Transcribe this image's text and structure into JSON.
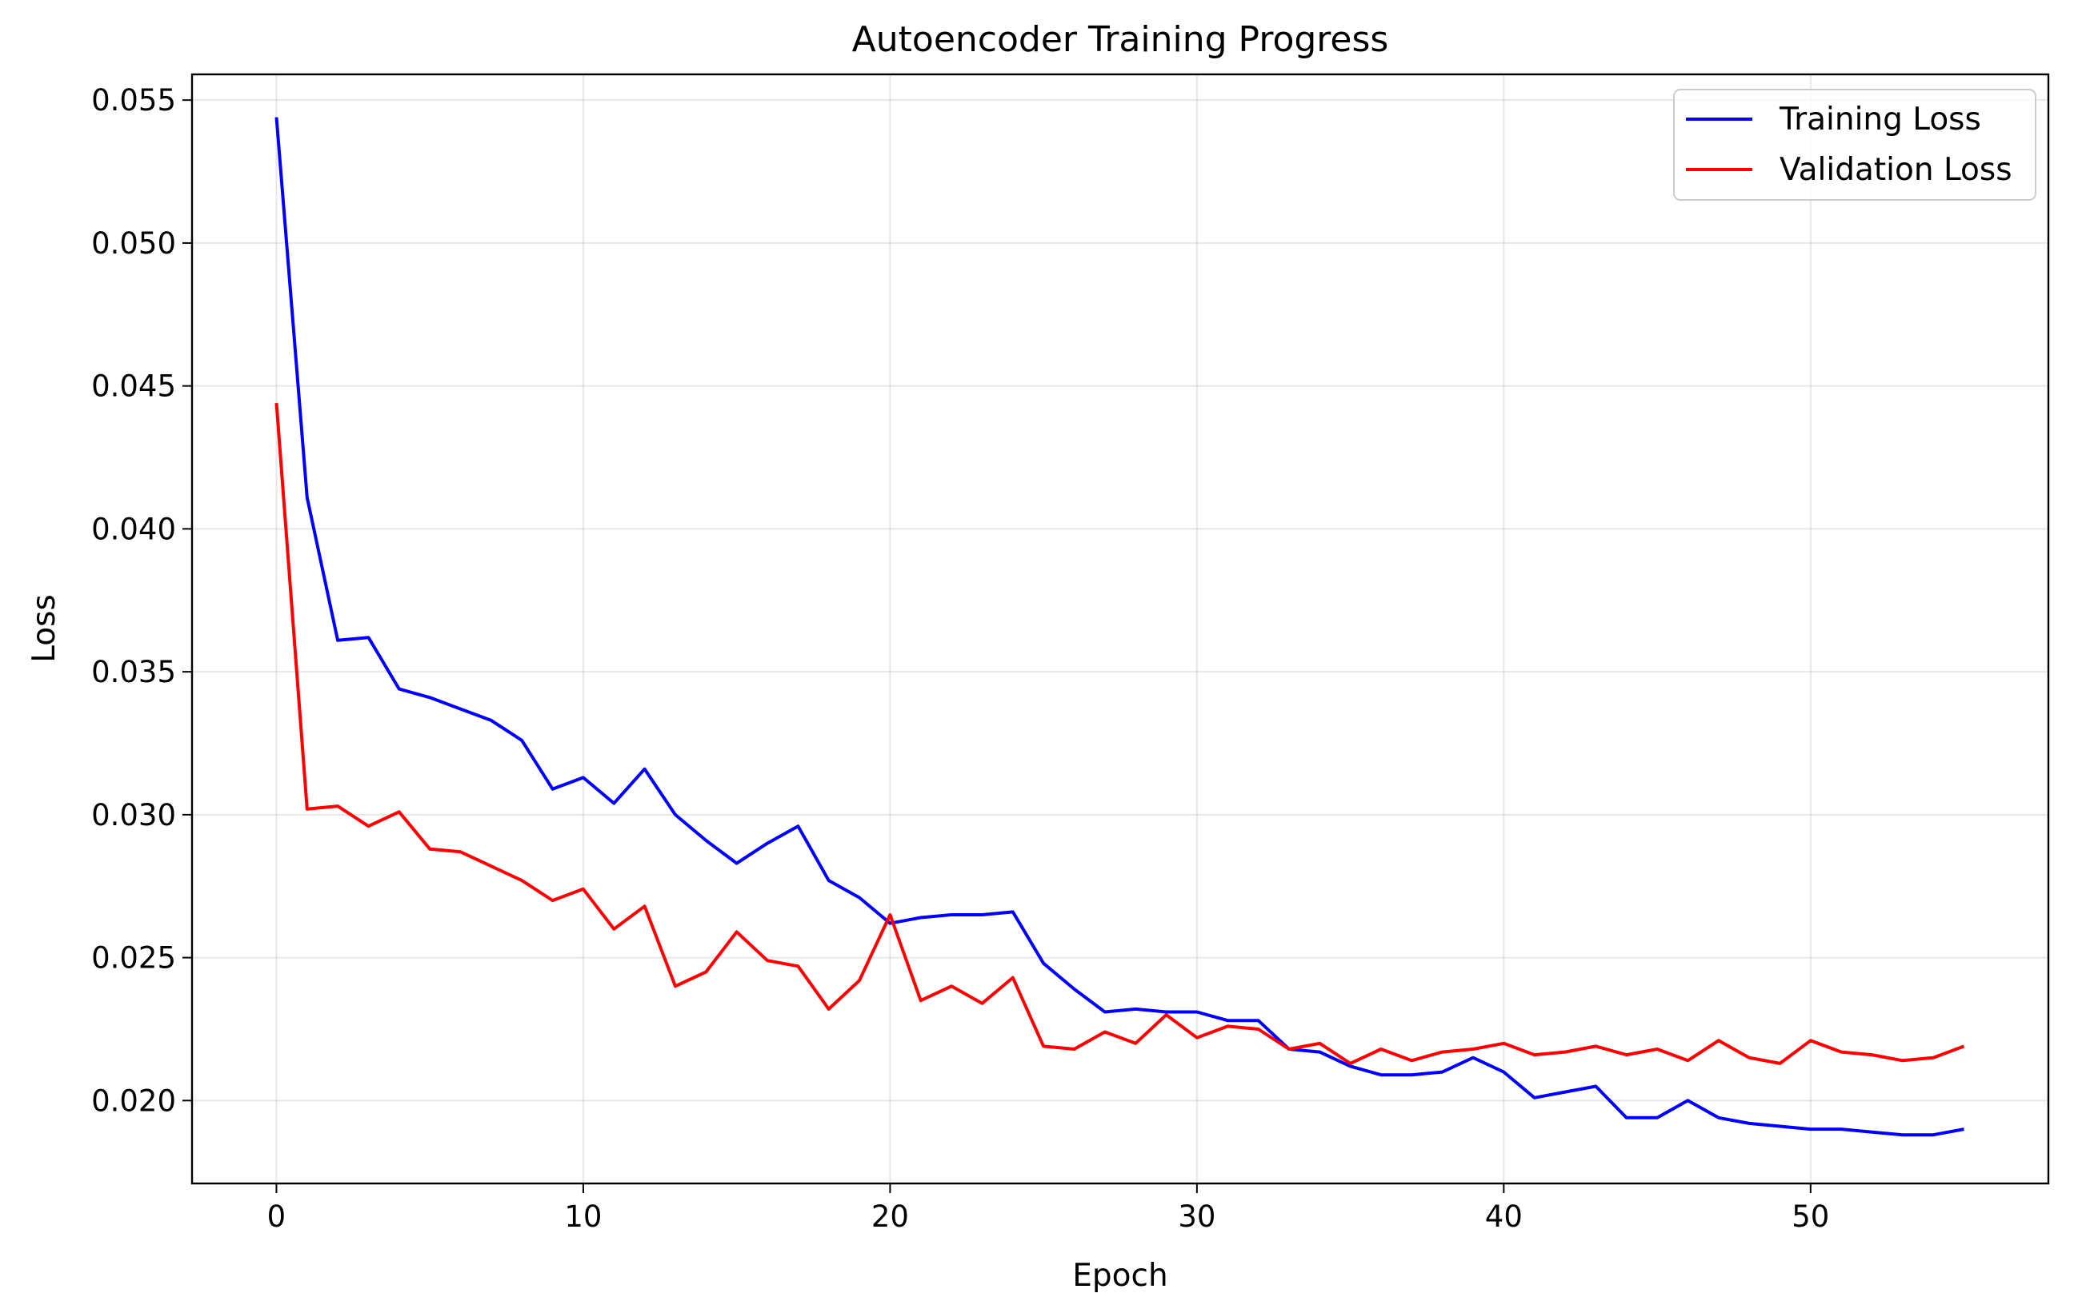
{
  "chart_data": {
    "type": "line",
    "title": "Autoencoder Training Progress",
    "xlabel": "Epoch",
    "ylabel": "Loss",
    "xlim": [
      -2.75,
      57.75
    ],
    "ylim": [
      0.0171,
      0.0559
    ],
    "xticks": [
      0,
      10,
      20,
      30,
      40,
      50
    ],
    "xtick_labels": [
      "0",
      "10",
      "20",
      "30",
      "40",
      "50"
    ],
    "yticks": [
      0.02,
      0.025,
      0.03,
      0.035,
      0.04,
      0.045,
      0.05,
      0.055
    ],
    "ytick_labels": [
      "0.020",
      "0.025",
      "0.030",
      "0.035",
      "0.040",
      "0.045",
      "0.050",
      "0.055"
    ],
    "grid": true,
    "legend_position": "top-right",
    "x": [
      0,
      1,
      2,
      3,
      4,
      5,
      6,
      7,
      8,
      9,
      10,
      11,
      12,
      13,
      14,
      15,
      16,
      17,
      18,
      19,
      20,
      21,
      22,
      23,
      24,
      25,
      26,
      27,
      28,
      29,
      30,
      31,
      32,
      33,
      34,
      35,
      36,
      37,
      38,
      39,
      40,
      41,
      42,
      43,
      44,
      45,
      46,
      47,
      48,
      49,
      50,
      51,
      52,
      53,
      54,
      55
    ],
    "series": [
      {
        "name": "Training Loss",
        "color": "#0000ff",
        "values": [
          0.0544,
          0.0411,
          0.0361,
          0.0362,
          0.0344,
          0.0341,
          0.0337,
          0.0333,
          0.0326,
          0.0309,
          0.0313,
          0.0304,
          0.0316,
          0.03,
          0.0291,
          0.0283,
          0.029,
          0.0296,
          0.0277,
          0.0271,
          0.0262,
          0.0264,
          0.0265,
          0.0265,
          0.0266,
          0.0248,
          0.0239,
          0.0231,
          0.0232,
          0.0231,
          0.0231,
          0.0228,
          0.0228,
          0.0218,
          0.0217,
          0.0212,
          0.0209,
          0.0209,
          0.021,
          0.0215,
          0.021,
          0.0201,
          0.0203,
          0.0205,
          0.0194,
          0.0194,
          0.02,
          0.0194,
          0.0192,
          0.0191,
          0.019,
          0.019,
          0.0189,
          0.0188,
          0.0188,
          0.019
        ]
      },
      {
        "name": "Validation Loss",
        "color": "#ff0000",
        "values": [
          0.0444,
          0.0302,
          0.0303,
          0.0296,
          0.0301,
          0.0288,
          0.0287,
          0.0282,
          0.0277,
          0.027,
          0.0274,
          0.026,
          0.0268,
          0.024,
          0.0245,
          0.0259,
          0.0249,
          0.0247,
          0.0232,
          0.0242,
          0.0265,
          0.0235,
          0.024,
          0.0234,
          0.0243,
          0.0219,
          0.0218,
          0.0224,
          0.022,
          0.023,
          0.0222,
          0.0226,
          0.0225,
          0.0218,
          0.022,
          0.0213,
          0.0218,
          0.0214,
          0.0217,
          0.0218,
          0.022,
          0.0216,
          0.0217,
          0.0219,
          0.0216,
          0.0218,
          0.0214,
          0.0221,
          0.0215,
          0.0213,
          0.0221,
          0.0217,
          0.0216,
          0.0214,
          0.0215,
          0.0219
        ]
      }
    ]
  }
}
